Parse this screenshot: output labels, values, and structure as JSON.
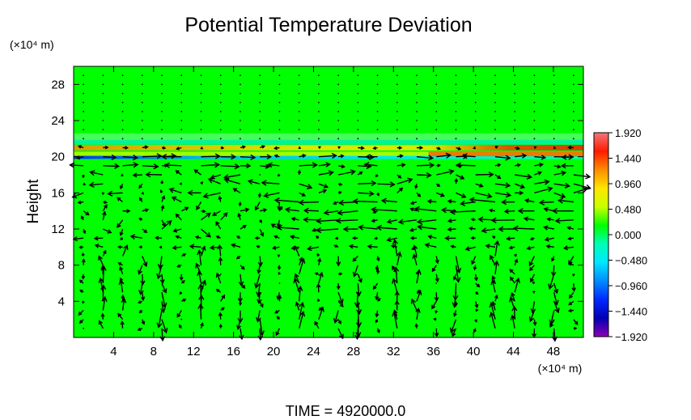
{
  "chart_data": {
    "type": "heatmap",
    "title": "Potential Temperature Deviation",
    "ylabel": "Height",
    "y_unit": "(×10⁴ m)",
    "x_unit": "(×10⁴ m)",
    "footer": "TIME = 4920000.0",
    "xlim": [
      0,
      51
    ],
    "ylim": [
      0,
      30
    ],
    "x_ticks": [
      "4",
      "8",
      "12",
      "16",
      "20",
      "24",
      "28",
      "32",
      "36",
      "40",
      "44",
      "48"
    ],
    "x_tick_values": [
      4,
      8,
      12,
      16,
      20,
      24,
      28,
      32,
      36,
      40,
      44,
      48
    ],
    "y_ticks": [
      "4",
      "8",
      "12",
      "16",
      "20",
      "24",
      "28"
    ],
    "y_tick_values": [
      4,
      8,
      12,
      16,
      20,
      24,
      28
    ],
    "colorbar": {
      "labels": [
        "1.920",
        "1.440",
        "0.960",
        "0.480",
        "0.000",
        "−0.480",
        "−0.960",
        "−1.440",
        "−1.920"
      ],
      "values": [
        1.92,
        1.44,
        0.96,
        0.48,
        0.0,
        -0.48,
        -0.96,
        -1.44,
        -1.92
      ],
      "colors": [
        "#f2777a",
        "#ff1a00",
        "#ff8c00",
        "#ffe600",
        "#c8ff00",
        "#00ff00",
        "#00ffb4",
        "#00e6ff",
        "#008cff",
        "#0028ff",
        "#0000b4",
        "#8c00b4"
      ]
    },
    "background_value": 0.0,
    "background_color": "#00ff00",
    "tropopause_height": 20,
    "vectors": "wind vectors shown as arrows over the field",
    "grid": false
  }
}
